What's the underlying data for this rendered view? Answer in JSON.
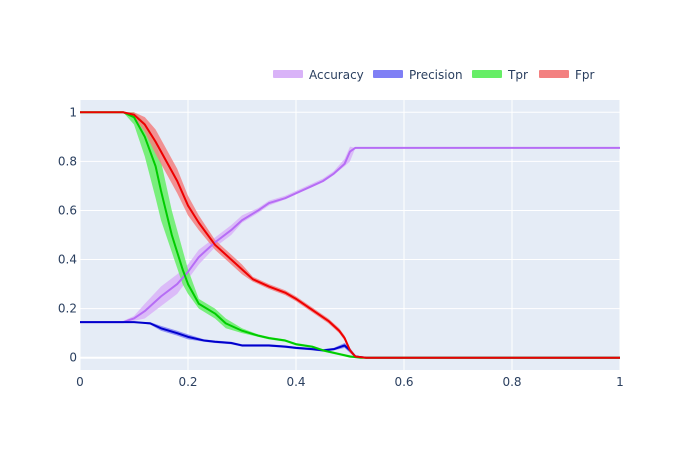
{
  "chart_data": {
    "type": "line",
    "title": "",
    "xlabel": "",
    "ylabel": "",
    "xlim": [
      0,
      1
    ],
    "ylim": [
      -0.05,
      1.05
    ],
    "x_ticks": [
      0,
      0.2,
      0.4,
      0.6,
      0.8,
      1
    ],
    "x_tick_labels": [
      "0",
      "0.2",
      "0.4",
      "0.6",
      "0.8",
      "1"
    ],
    "y_ticks": [
      0,
      0.2,
      0.4,
      0.6,
      0.8,
      1
    ],
    "y_tick_labels": [
      "0",
      "0.2",
      "0.4",
      "0.6",
      "0.8",
      "1"
    ],
    "grid": true,
    "legend_position": "top-right",
    "plot_background": "#e5ecf6",
    "series": [
      {
        "name": "Accuracy",
        "color": "#b66df5",
        "band_color": "#d9b3f8",
        "x": [
          0,
          0.05,
          0.08,
          0.1,
          0.12,
          0.15,
          0.18,
          0.2,
          0.22,
          0.25,
          0.28,
          0.3,
          0.33,
          0.35,
          0.38,
          0.4,
          0.43,
          0.45,
          0.47,
          0.49,
          0.5,
          0.51,
          0.55,
          0.6,
          0.7,
          0.8,
          0.9,
          1.0
        ],
        "values": [
          0.145,
          0.145,
          0.145,
          0.16,
          0.19,
          0.25,
          0.3,
          0.35,
          0.41,
          0.47,
          0.52,
          0.56,
          0.6,
          0.63,
          0.65,
          0.67,
          0.7,
          0.72,
          0.75,
          0.79,
          0.84,
          0.855,
          0.855,
          0.855,
          0.855,
          0.855,
          0.855,
          0.855
        ],
        "lower": [
          0.145,
          0.145,
          0.145,
          0.15,
          0.16,
          0.21,
          0.26,
          0.32,
          0.38,
          0.45,
          0.5,
          0.55,
          0.59,
          0.62,
          0.645,
          0.665,
          0.695,
          0.715,
          0.745,
          0.78,
          0.8,
          0.855,
          0.855,
          0.855,
          0.855,
          0.855,
          0.855,
          0.855
        ],
        "upper": [
          0.145,
          0.145,
          0.15,
          0.17,
          0.22,
          0.29,
          0.34,
          0.38,
          0.44,
          0.49,
          0.54,
          0.58,
          0.61,
          0.64,
          0.66,
          0.68,
          0.71,
          0.73,
          0.76,
          0.81,
          0.86,
          0.855,
          0.855,
          0.855,
          0.855,
          0.855,
          0.855,
          0.855
        ]
      },
      {
        "name": "Precision",
        "color": "#0000cc",
        "band_color": "#7f7ff5",
        "x": [
          0,
          0.05,
          0.1,
          0.13,
          0.15,
          0.18,
          0.2,
          0.23,
          0.25,
          0.28,
          0.3,
          0.33,
          0.35,
          0.38,
          0.4,
          0.43,
          0.45,
          0.47,
          0.49,
          0.5,
          0.51,
          0.53,
          0.6,
          0.7,
          0.8,
          0.9,
          1.0
        ],
        "values": [
          0.145,
          0.145,
          0.145,
          0.14,
          0.12,
          0.1,
          0.085,
          0.07,
          0.065,
          0.06,
          0.05,
          0.05,
          0.05,
          0.045,
          0.04,
          0.035,
          0.03,
          0.035,
          0.05,
          0.03,
          0.005,
          0.0,
          0.0,
          0.0,
          0.0,
          0.0,
          0.0
        ],
        "lower": [
          0.145,
          0.145,
          0.145,
          0.135,
          0.11,
          0.09,
          0.075,
          0.065,
          0.06,
          0.055,
          0.045,
          0.045,
          0.045,
          0.04,
          0.035,
          0.03,
          0.025,
          0.03,
          0.04,
          0.02,
          0.0,
          0.0,
          0.0,
          0.0,
          0.0,
          0.0,
          0.0
        ],
        "upper": [
          0.145,
          0.145,
          0.145,
          0.145,
          0.13,
          0.11,
          0.095,
          0.075,
          0.07,
          0.065,
          0.055,
          0.055,
          0.055,
          0.05,
          0.045,
          0.04,
          0.035,
          0.04,
          0.06,
          0.04,
          0.01,
          0.0,
          0.0,
          0.0,
          0.0,
          0.0,
          0.0
        ]
      },
      {
        "name": "Tpr",
        "color": "#00cc00",
        "band_color": "#66ee66",
        "x": [
          0,
          0.05,
          0.08,
          0.1,
          0.12,
          0.14,
          0.15,
          0.17,
          0.19,
          0.2,
          0.22,
          0.25,
          0.27,
          0.3,
          0.33,
          0.35,
          0.38,
          0.4,
          0.43,
          0.45,
          0.48,
          0.5,
          0.52,
          0.55,
          0.6,
          0.7,
          0.8,
          0.9,
          1.0
        ],
        "values": [
          1.0,
          1.0,
          1.0,
          0.98,
          0.9,
          0.78,
          0.68,
          0.5,
          0.36,
          0.3,
          0.22,
          0.18,
          0.14,
          0.11,
          0.09,
          0.08,
          0.07,
          0.055,
          0.045,
          0.03,
          0.015,
          0.005,
          0.0,
          0.0,
          0.0,
          0.0,
          0.0,
          0.0,
          0.0
        ],
        "lower": [
          1.0,
          1.0,
          1.0,
          0.95,
          0.82,
          0.65,
          0.56,
          0.43,
          0.3,
          0.26,
          0.2,
          0.16,
          0.12,
          0.1,
          0.085,
          0.075,
          0.065,
          0.05,
          0.04,
          0.025,
          0.01,
          0.0,
          0.0,
          0.0,
          0.0,
          0.0,
          0.0,
          0.0,
          0.0
        ],
        "upper": [
          1.0,
          1.0,
          1.0,
          1.0,
          0.96,
          0.88,
          0.8,
          0.6,
          0.44,
          0.36,
          0.24,
          0.2,
          0.16,
          0.12,
          0.095,
          0.085,
          0.075,
          0.06,
          0.05,
          0.035,
          0.02,
          0.01,
          0.0,
          0.0,
          0.0,
          0.0,
          0.0,
          0.0,
          0.0
        ]
      },
      {
        "name": "Fpr",
        "color": "#ee0000",
        "band_color": "#f38080",
        "x": [
          0,
          0.05,
          0.08,
          0.1,
          0.12,
          0.14,
          0.16,
          0.18,
          0.2,
          0.22,
          0.25,
          0.27,
          0.3,
          0.32,
          0.35,
          0.38,
          0.4,
          0.42,
          0.44,
          0.46,
          0.48,
          0.49,
          0.5,
          0.51,
          0.53,
          0.6,
          0.7,
          0.8,
          0.9,
          1.0
        ],
        "values": [
          1.0,
          1.0,
          1.0,
          0.99,
          0.95,
          0.88,
          0.8,
          0.72,
          0.62,
          0.55,
          0.46,
          0.42,
          0.36,
          0.32,
          0.29,
          0.265,
          0.24,
          0.21,
          0.18,
          0.15,
          0.11,
          0.08,
          0.03,
          0.005,
          0.0,
          0.0,
          0.0,
          0.0,
          0.0,
          0.0
        ],
        "lower": [
          1.0,
          1.0,
          1.0,
          0.98,
          0.92,
          0.83,
          0.75,
          0.67,
          0.58,
          0.52,
          0.44,
          0.4,
          0.34,
          0.31,
          0.28,
          0.255,
          0.23,
          0.2,
          0.17,
          0.14,
          0.1,
          0.07,
          0.02,
          0.0,
          0.0,
          0.0,
          0.0,
          0.0,
          0.0,
          0.0
        ],
        "upper": [
          1.0,
          1.0,
          1.0,
          1.0,
          0.98,
          0.93,
          0.85,
          0.77,
          0.66,
          0.58,
          0.48,
          0.44,
          0.38,
          0.33,
          0.3,
          0.275,
          0.25,
          0.22,
          0.19,
          0.16,
          0.12,
          0.09,
          0.04,
          0.01,
          0.0,
          0.0,
          0.0,
          0.0,
          0.0,
          0.0
        ]
      }
    ]
  }
}
